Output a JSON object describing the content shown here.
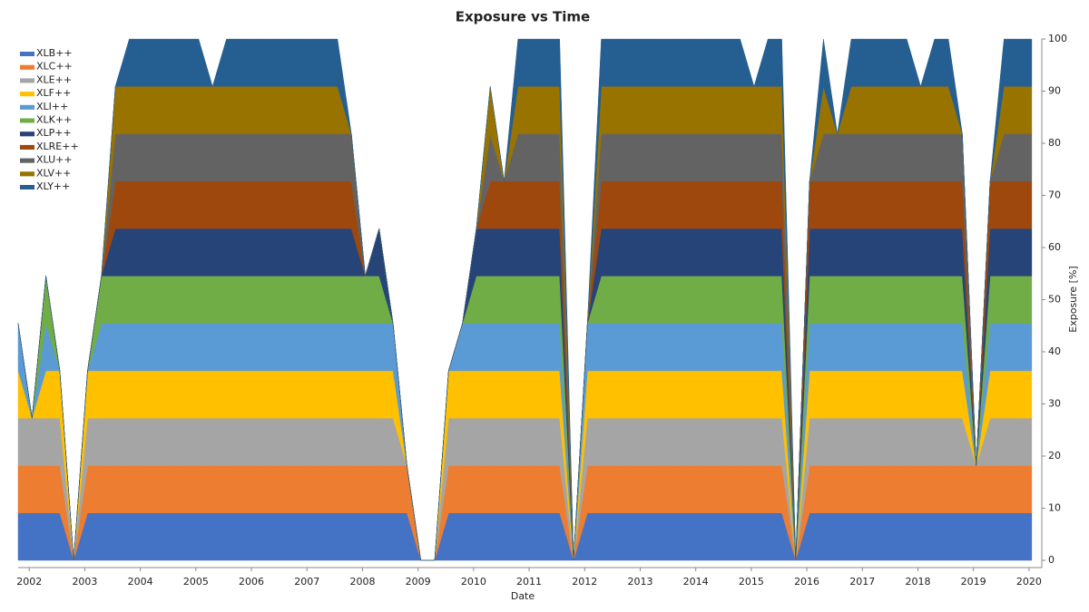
{
  "chart_data": {
    "type": "stacked_area",
    "title": "Exposure vs Time",
    "x_label": "Date",
    "y_label": "Exposure [%]",
    "y_axis_side": "right",
    "legend": "upper left",
    "xlim": [
      2001.8,
      2020.1
    ],
    "xticks": [
      2002,
      2003,
      2004,
      2005,
      2006,
      2007,
      2008,
      2009,
      2010,
      2011,
      2012,
      2013,
      2014,
      2015,
      2016,
      2017,
      2018,
      2019,
      2020
    ],
    "ylim": [
      0,
      100
    ],
    "yticks": [
      0,
      10,
      20,
      30,
      40,
      50,
      60,
      70,
      80,
      90,
      100
    ],
    "x": [
      2001.8,
      2002.05,
      2002.3,
      2002.55,
      2002.8,
      2003.05,
      2003.3,
      2003.55,
      2003.8,
      2004.05,
      2004.3,
      2004.55,
      2004.8,
      2005.05,
      2005.3,
      2005.55,
      2005.8,
      2006.05,
      2006.3,
      2006.55,
      2006.8,
      2007.05,
      2007.3,
      2007.55,
      2007.8,
      2008.05,
      2008.3,
      2008.55,
      2008.8,
      2009.05,
      2009.3,
      2009.55,
      2009.8,
      2010.05,
      2010.3,
      2010.55,
      2010.8,
      2011.05,
      2011.3,
      2011.55,
      2011.8,
      2012.05,
      2012.3,
      2012.55,
      2012.8,
      2013.05,
      2013.3,
      2013.55,
      2013.8,
      2014.05,
      2014.3,
      2014.55,
      2014.8,
      2015.05,
      2015.3,
      2015.55,
      2015.8,
      2016.05,
      2016.3,
      2016.55,
      2016.8,
      2017.05,
      2017.3,
      2017.55,
      2017.8,
      2018.05,
      2018.3,
      2018.55,
      2018.8,
      2019.05,
      2019.3,
      2019.55,
      2019.8,
      2020.05
    ],
    "series": [
      {
        "name": "XLB++",
        "color": "#4472c4",
        "values": [
          9.09,
          9.09,
          9.09,
          9.09,
          0,
          9.09,
          9.09,
          9.09,
          9.09,
          9.09,
          9.09,
          9.09,
          9.09,
          9.09,
          9.09,
          9.09,
          9.09,
          9.09,
          9.09,
          9.09,
          9.09,
          9.09,
          9.09,
          9.09,
          9.09,
          9.09,
          9.09,
          9.09,
          9.09,
          0,
          0,
          9.09,
          9.09,
          9.09,
          9.09,
          9.09,
          9.09,
          9.09,
          9.09,
          9.09,
          0,
          9.09,
          9.09,
          9.09,
          9.09,
          9.09,
          9.09,
          9.09,
          9.09,
          9.09,
          9.09,
          9.09,
          9.09,
          9.09,
          9.09,
          9.09,
          0,
          9.09,
          9.09,
          9.09,
          9.09,
          9.09,
          9.09,
          9.09,
          9.09,
          9.09,
          9.09,
          9.09,
          9.09,
          9.09,
          9.09,
          9.09,
          9.09,
          9.09
        ]
      },
      {
        "name": "XLC++",
        "color": "#ed7d31",
        "values": [
          9.09,
          9.09,
          9.09,
          9.09,
          0,
          9.09,
          9.09,
          9.09,
          9.09,
          9.09,
          9.09,
          9.09,
          9.09,
          9.09,
          9.09,
          9.09,
          9.09,
          9.09,
          9.09,
          9.09,
          9.09,
          9.09,
          9.09,
          9.09,
          9.09,
          9.09,
          9.09,
          9.09,
          9.09,
          0,
          0,
          9.09,
          9.09,
          9.09,
          9.09,
          9.09,
          9.09,
          9.09,
          9.09,
          9.09,
          0,
          9.09,
          9.09,
          9.09,
          9.09,
          9.09,
          9.09,
          9.09,
          9.09,
          9.09,
          9.09,
          9.09,
          9.09,
          9.09,
          9.09,
          9.09,
          0,
          9.09,
          9.09,
          9.09,
          9.09,
          9.09,
          9.09,
          9.09,
          9.09,
          9.09,
          9.09,
          9.09,
          9.09,
          9.09,
          9.09,
          9.09,
          9.09,
          9.09
        ]
      },
      {
        "name": "XLE++",
        "color": "#a5a5a5",
        "values": [
          9.09,
          9.09,
          9.09,
          9.09,
          0,
          9.09,
          9.09,
          9.09,
          9.09,
          9.09,
          9.09,
          9.09,
          9.09,
          9.09,
          9.09,
          9.09,
          9.09,
          9.09,
          9.09,
          9.09,
          9.09,
          9.09,
          9.09,
          9.09,
          9.09,
          9.09,
          9.09,
          9.09,
          0,
          0,
          0,
          9.09,
          9.09,
          9.09,
          9.09,
          9.09,
          9.09,
          9.09,
          9.09,
          9.09,
          0,
          9.09,
          9.09,
          9.09,
          9.09,
          9.09,
          9.09,
          9.09,
          9.09,
          9.09,
          9.09,
          9.09,
          9.09,
          9.09,
          9.09,
          9.09,
          0,
          9.09,
          9.09,
          9.09,
          9.09,
          9.09,
          9.09,
          9.09,
          9.09,
          9.09,
          9.09,
          9.09,
          9.09,
          0,
          9.09,
          9.09,
          9.09,
          9.09
        ]
      },
      {
        "name": "XLF++",
        "color": "#ffc000",
        "values": [
          9.09,
          0,
          9.09,
          9.09,
          0,
          9.09,
          9.09,
          9.09,
          9.09,
          9.09,
          9.09,
          9.09,
          9.09,
          9.09,
          9.09,
          9.09,
          9.09,
          9.09,
          9.09,
          9.09,
          9.09,
          9.09,
          9.09,
          9.09,
          9.09,
          9.09,
          9.09,
          9.09,
          0,
          0,
          0,
          9.09,
          9.09,
          9.09,
          9.09,
          9.09,
          9.09,
          9.09,
          9.09,
          9.09,
          0,
          9.09,
          9.09,
          9.09,
          9.09,
          9.09,
          9.09,
          9.09,
          9.09,
          9.09,
          9.09,
          9.09,
          9.09,
          9.09,
          9.09,
          9.09,
          0,
          9.09,
          9.09,
          9.09,
          9.09,
          9.09,
          9.09,
          9.09,
          9.09,
          9.09,
          9.09,
          9.09,
          9.09,
          0,
          9.09,
          9.09,
          9.09,
          9.09
        ]
      },
      {
        "name": "XLI++",
        "color": "#5b9bd5",
        "values": [
          9.09,
          0,
          9.09,
          0,
          0,
          0,
          9.09,
          9.09,
          9.09,
          9.09,
          9.09,
          9.09,
          9.09,
          9.09,
          9.09,
          9.09,
          9.09,
          9.09,
          9.09,
          9.09,
          9.09,
          9.09,
          9.09,
          9.09,
          9.09,
          9.09,
          9.09,
          9.09,
          0,
          0,
          0,
          0,
          9.09,
          9.09,
          9.09,
          9.09,
          9.09,
          9.09,
          9.09,
          9.09,
          0,
          9.09,
          9.09,
          9.09,
          9.09,
          9.09,
          9.09,
          9.09,
          9.09,
          9.09,
          9.09,
          9.09,
          9.09,
          9.09,
          9.09,
          9.09,
          0,
          9.09,
          9.09,
          9.09,
          9.09,
          9.09,
          9.09,
          9.09,
          9.09,
          9.09,
          9.09,
          9.09,
          9.09,
          0,
          9.09,
          9.09,
          9.09,
          9.09
        ]
      },
      {
        "name": "XLK++",
        "color": "#70ad47",
        "values": [
          0,
          0,
          9.09,
          0,
          0,
          0,
          9.09,
          9.09,
          9.09,
          9.09,
          9.09,
          9.09,
          9.09,
          9.09,
          9.09,
          9.09,
          9.09,
          9.09,
          9.09,
          9.09,
          9.09,
          9.09,
          9.09,
          9.09,
          9.09,
          9.09,
          9.09,
          0,
          0,
          0,
          0,
          0,
          0,
          9.09,
          9.09,
          9.09,
          9.09,
          9.09,
          9.09,
          9.09,
          0,
          0,
          9.09,
          9.09,
          9.09,
          9.09,
          9.09,
          9.09,
          9.09,
          9.09,
          9.09,
          9.09,
          9.09,
          9.09,
          9.09,
          9.09,
          0,
          9.09,
          9.09,
          9.09,
          9.09,
          9.09,
          9.09,
          9.09,
          9.09,
          9.09,
          9.09,
          9.09,
          9.09,
          0,
          9.09,
          9.09,
          9.09,
          9.09
        ]
      },
      {
        "name": "XLP++",
        "color": "#264478",
        "values": [
          0,
          0,
          0,
          0,
          0,
          0,
          0,
          9.09,
          9.09,
          9.09,
          9.09,
          9.09,
          9.09,
          9.09,
          9.09,
          9.09,
          9.09,
          9.09,
          9.09,
          9.09,
          9.09,
          9.09,
          9.09,
          9.09,
          9.09,
          0,
          9.09,
          0,
          0,
          0,
          0,
          0,
          0,
          9.09,
          9.09,
          9.09,
          9.09,
          9.09,
          9.09,
          9.09,
          0,
          0,
          9.09,
          9.09,
          9.09,
          9.09,
          9.09,
          9.09,
          9.09,
          9.09,
          9.09,
          9.09,
          9.09,
          9.09,
          9.09,
          9.09,
          0,
          9.09,
          9.09,
          9.09,
          9.09,
          9.09,
          9.09,
          9.09,
          9.09,
          9.09,
          9.09,
          9.09,
          9.09,
          0,
          9.09,
          9.09,
          9.09,
          9.09
        ]
      },
      {
        "name": "XLRE++",
        "color": "#9e480e",
        "values": [
          0,
          0,
          0,
          0,
          0,
          0,
          0,
          9.09,
          9.09,
          9.09,
          9.09,
          9.09,
          9.09,
          9.09,
          9.09,
          9.09,
          9.09,
          9.09,
          9.09,
          9.09,
          9.09,
          9.09,
          9.09,
          9.09,
          9.09,
          0,
          0,
          0,
          0,
          0,
          0,
          0,
          0,
          0,
          9.09,
          9.09,
          9.09,
          9.09,
          9.09,
          9.09,
          0,
          0,
          9.09,
          9.09,
          9.09,
          9.09,
          9.09,
          9.09,
          9.09,
          9.09,
          9.09,
          9.09,
          9.09,
          9.09,
          9.09,
          9.09,
          0,
          9.09,
          9.09,
          9.09,
          9.09,
          9.09,
          9.09,
          9.09,
          9.09,
          9.09,
          9.09,
          9.09,
          9.09,
          0,
          9.09,
          9.09,
          9.09,
          9.09
        ]
      },
      {
        "name": "XLU++",
        "color": "#636363",
        "values": [
          0,
          0,
          0,
          0,
          0,
          0,
          0,
          9.09,
          9.09,
          9.09,
          9.09,
          9.09,
          9.09,
          9.09,
          9.09,
          9.09,
          9.09,
          9.09,
          9.09,
          9.09,
          9.09,
          9.09,
          9.09,
          9.09,
          9.09,
          0,
          0,
          0,
          0,
          0,
          0,
          0,
          0,
          0,
          9.09,
          0,
          9.09,
          9.09,
          9.09,
          9.09,
          0,
          0,
          9.09,
          9.09,
          9.09,
          9.09,
          9.09,
          9.09,
          9.09,
          9.09,
          9.09,
          9.09,
          9.09,
          9.09,
          9.09,
          9.09,
          0,
          0,
          9.09,
          9.09,
          9.09,
          9.09,
          9.09,
          9.09,
          9.09,
          9.09,
          9.09,
          9.09,
          9.09,
          0,
          0,
          9.09,
          9.09,
          9.09
        ]
      },
      {
        "name": "XLV++",
        "color": "#997300",
        "values": [
          0,
          0,
          0,
          0,
          0,
          0,
          0,
          9.09,
          9.09,
          9.09,
          9.09,
          9.09,
          9.09,
          9.09,
          9.09,
          9.09,
          9.09,
          9.09,
          9.09,
          9.09,
          9.09,
          9.09,
          9.09,
          9.09,
          0,
          0,
          0,
          0,
          0,
          0,
          0,
          0,
          0,
          0,
          9.09,
          0,
          9.09,
          9.09,
          9.09,
          9.09,
          0,
          0,
          9.09,
          9.09,
          9.09,
          9.09,
          9.09,
          9.09,
          9.09,
          9.09,
          9.09,
          9.09,
          9.09,
          9.09,
          9.09,
          9.09,
          0,
          0,
          9.09,
          0,
          9.09,
          9.09,
          9.09,
          9.09,
          9.09,
          9.09,
          9.09,
          9.09,
          0,
          0,
          0,
          9.09,
          9.09,
          9.09
        ]
      },
      {
        "name": "XLY++",
        "color": "#255e91",
        "values": [
          0,
          0,
          0,
          0,
          0,
          0,
          0,
          0,
          9.09,
          9.09,
          9.09,
          9.09,
          9.09,
          9.09,
          0,
          9.09,
          9.09,
          9.09,
          9.09,
          9.09,
          9.09,
          9.09,
          9.09,
          9.09,
          0,
          0,
          0,
          0,
          0,
          0,
          0,
          0,
          0,
          0,
          0,
          0,
          9.09,
          9.09,
          9.09,
          9.09,
          0,
          0,
          9.09,
          9.09,
          9.09,
          9.09,
          9.09,
          9.09,
          9.09,
          9.09,
          9.09,
          9.09,
          9.09,
          0,
          9.09,
          9.09,
          0,
          0,
          9.09,
          0,
          9.09,
          9.09,
          9.09,
          9.09,
          9.09,
          0,
          9.09,
          9.09,
          0,
          0,
          0,
          9.09,
          9.09,
          9.09
        ]
      }
    ]
  }
}
